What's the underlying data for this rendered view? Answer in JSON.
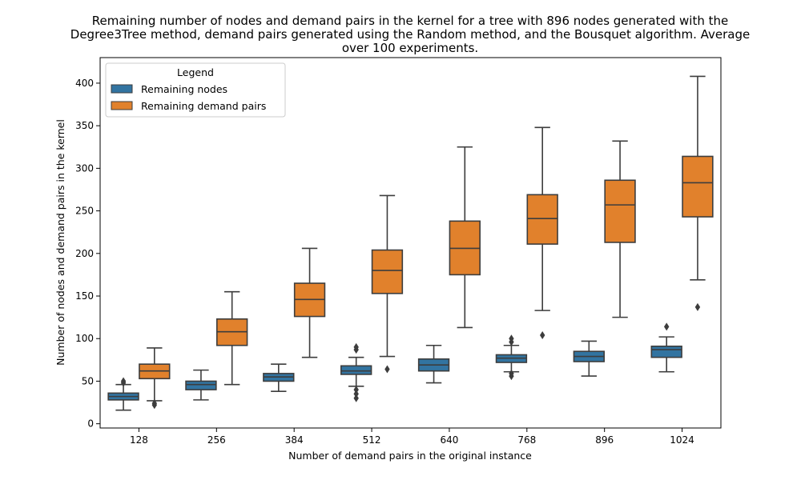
{
  "chart_data": {
    "type": "box",
    "title_lines": [
      "Remaining number of nodes and demand pairs in the kernel for a tree with 896 nodes generated with the",
      "Degree3Tree method, demand pairs generated using the Random method, and the Bousquet algorithm. Average",
      "over 100 experiments."
    ],
    "xlabel": "Number of demand pairs in the original instance",
    "ylabel": "Number of nodes and demand pairs in the kernel",
    "categories": [
      "128",
      "256",
      "384",
      "512",
      "640",
      "768",
      "896",
      "1024"
    ],
    "ylim": [
      -5,
      430
    ],
    "yticks": [
      0,
      50,
      100,
      150,
      200,
      250,
      300,
      350,
      400
    ],
    "legend": {
      "title": "Legend",
      "position": "top-left"
    },
    "series": [
      {
        "name": "Remaining nodes",
        "color": "#3274a1",
        "boxes": [
          {
            "whisker_low": 16,
            "q1": 28,
            "median": 32,
            "q3": 36,
            "whisker_high": 46,
            "outliers": [
              48,
              50
            ]
          },
          {
            "whisker_low": 28,
            "q1": 40,
            "median": 46,
            "q3": 50,
            "whisker_high": 63,
            "outliers": []
          },
          {
            "whisker_low": 38,
            "q1": 50,
            "median": 55,
            "q3": 59,
            "whisker_high": 70,
            "outliers": []
          },
          {
            "whisker_low": 44,
            "q1": 58,
            "median": 62,
            "q3": 68,
            "whisker_high": 78,
            "outliers": [
              30,
              35,
              40,
              87,
              90
            ]
          },
          {
            "whisker_low": 48,
            "q1": 62,
            "median": 69,
            "q3": 76,
            "whisker_high": 92,
            "outliers": []
          },
          {
            "whisker_low": 61,
            "q1": 72,
            "median": 77,
            "q3": 81,
            "whisker_high": 92,
            "outliers": [
              56,
              59,
              96,
              100
            ]
          },
          {
            "whisker_low": 56,
            "q1": 73,
            "median": 79,
            "q3": 85,
            "whisker_high": 97,
            "outliers": []
          },
          {
            "whisker_low": 61,
            "q1": 78,
            "median": 87,
            "q3": 91,
            "whisker_high": 102,
            "outliers": [
              114
            ]
          }
        ]
      },
      {
        "name": "Remaining demand pairs",
        "color": "#e1812c",
        "boxes": [
          {
            "whisker_low": 27,
            "q1": 53,
            "median": 62,
            "q3": 70,
            "whisker_high": 89,
            "outliers": [
              22,
              24
            ]
          },
          {
            "whisker_low": 46,
            "q1": 92,
            "median": 108,
            "q3": 123,
            "whisker_high": 155,
            "outliers": []
          },
          {
            "whisker_low": 78,
            "q1": 126,
            "median": 146,
            "q3": 165,
            "whisker_high": 206,
            "outliers": []
          },
          {
            "whisker_low": 79,
            "q1": 153,
            "median": 180,
            "q3": 204,
            "whisker_high": 268,
            "outliers": [
              64
            ]
          },
          {
            "whisker_low": 113,
            "q1": 175,
            "median": 206,
            "q3": 238,
            "whisker_high": 325,
            "outliers": []
          },
          {
            "whisker_low": 133,
            "q1": 211,
            "median": 241,
            "q3": 269,
            "whisker_high": 348,
            "outliers": [
              104
            ]
          },
          {
            "whisker_low": 125,
            "q1": 213,
            "median": 257,
            "q3": 286,
            "whisker_high": 332,
            "outliers": []
          },
          {
            "whisker_low": 169,
            "q1": 243,
            "median": 283,
            "q3": 314,
            "whisker_high": 408,
            "outliers": [
              137
            ]
          }
        ]
      }
    ]
  }
}
